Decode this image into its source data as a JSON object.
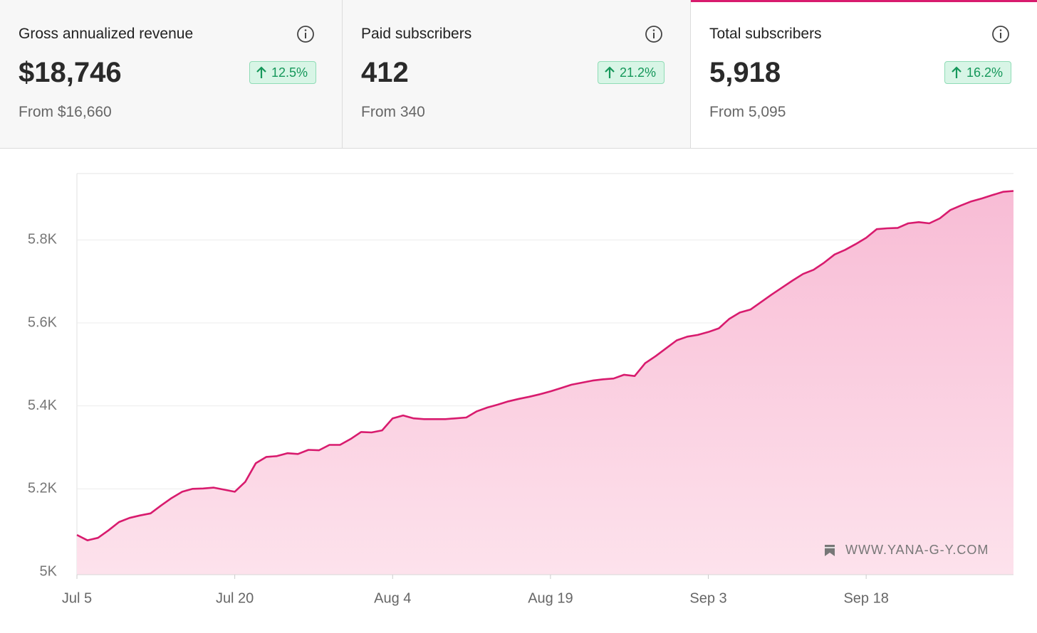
{
  "cards": [
    {
      "title": "Gross annualized revenue",
      "value": "$18,746",
      "change": "12.5%",
      "from": "From $16,660"
    },
    {
      "title": "Paid subscribers",
      "value": "412",
      "change": "21.2%",
      "from": "From 340"
    },
    {
      "title": "Total subscribers",
      "value": "5,918",
      "change": "16.2%",
      "from": "From 5,095"
    }
  ],
  "chart_data": {
    "type": "area",
    "categories": [
      "Jul 5",
      null,
      null,
      null,
      null,
      null,
      null,
      null,
      null,
      null,
      null,
      null,
      null,
      null,
      null,
      "Jul 20",
      null,
      null,
      null,
      null,
      null,
      null,
      null,
      null,
      null,
      null,
      null,
      null,
      null,
      null,
      "Aug 4",
      null,
      null,
      null,
      null,
      null,
      null,
      null,
      null,
      null,
      null,
      null,
      null,
      null,
      null,
      "Aug 19",
      null,
      null,
      null,
      null,
      null,
      null,
      null,
      null,
      null,
      null,
      null,
      null,
      null,
      null,
      "Sep 3",
      null,
      null,
      null,
      null,
      null,
      null,
      null,
      null,
      null,
      null,
      null,
      null,
      null,
      null,
      "Sep 18",
      null,
      null,
      null,
      null,
      null,
      null,
      null,
      null,
      null,
      null,
      null,
      null,
      null,
      null
    ],
    "values": [
      5089,
      5076,
      5082,
      5100,
      5120,
      5130,
      5136,
      5141,
      5160,
      5178,
      5193,
      5200,
      5201,
      5203,
      5198,
      5193,
      5217,
      5262,
      5277,
      5279,
      5286,
      5284,
      5294,
      5293,
      5306,
      5306,
      5320,
      5337,
      5336,
      5341,
      5370,
      5377,
      5370,
      5368,
      5368,
      5368,
      5370,
      5372,
      5387,
      5396,
      5403,
      5411,
      5417,
      5422,
      5428,
      5435,
      5443,
      5451,
      5456,
      5461,
      5464,
      5466,
      5475,
      5472,
      5503,
      5520,
      5539,
      5558,
      5567,
      5571,
      5578,
      5587,
      5610,
      5625,
      5632,
      5650,
      5668,
      5685,
      5702,
      5718,
      5728,
      5745,
      5765,
      5776,
      5790,
      5805,
      5826,
      5828,
      5829,
      5840,
      5843,
      5840,
      5852,
      5872,
      5883,
      5893,
      5900,
      5908,
      5916,
      5918
    ],
    "color": "#d81b6e",
    "ylim": [
      5000,
      5960
    ],
    "yticks": [
      {
        "value": 5000,
        "label": "5K"
      },
      {
        "value": 5200,
        "label": "5.2K"
      },
      {
        "value": 5400,
        "label": "5.4K"
      },
      {
        "value": 5600,
        "label": "5.6K"
      },
      {
        "value": 5800,
        "label": "5.8K"
      }
    ],
    "grid": true,
    "watermark": "WWW.YANA-G-Y.COM"
  }
}
